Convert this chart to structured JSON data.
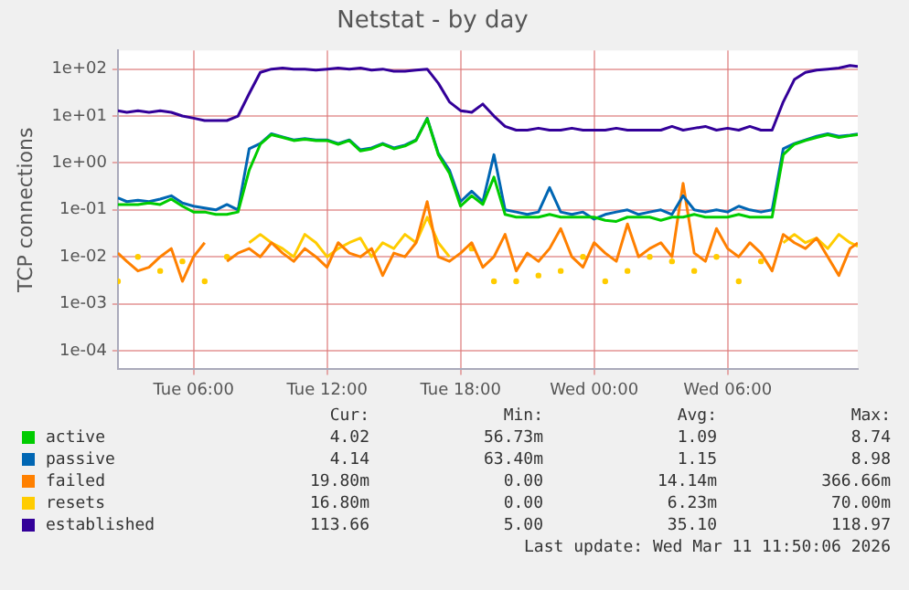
{
  "chart_data": {
    "type": "line",
    "title": "Netstat - by day",
    "ylabel": "TCP connections",
    "log": true,
    "grid": true,
    "legend": "bottom",
    "marker": "none",
    "line_style": "solid",
    "xlim": [
      "2026-03-10T02:36",
      "2026-03-11T11:51"
    ],
    "xticks": [
      {
        "value": "2026-03-10T06:00",
        "label": "Tue 06:00"
      },
      {
        "value": "2026-03-10T12:00",
        "label": "Tue 12:00"
      },
      {
        "value": "2026-03-10T18:00",
        "label": "Tue 18:00"
      },
      {
        "value": "2026-03-11T00:00",
        "label": "Wed 00:00"
      },
      {
        "value": "2026-03-11T06:00",
        "label": "Wed 06:00"
      }
    ],
    "ylim": [
      4e-05,
      250
    ],
    "yticks": [
      {
        "value": 0.0001,
        "label": "1e-04"
      },
      {
        "value": 0.001,
        "label": "1e-03"
      },
      {
        "value": 0.01,
        "label": "1e-02"
      },
      {
        "value": 0.1,
        "label": "1e-01"
      },
      {
        "value": 1,
        "label": "1e+00"
      },
      {
        "value": 10,
        "label": "1e+01"
      },
      {
        "value": 100,
        "label": "1e+02"
      }
    ],
    "x": [
      "2026-03-10T02:36",
      "2026-03-10T03:00",
      "2026-03-10T03:30",
      "2026-03-10T04:00",
      "2026-03-10T04:30",
      "2026-03-10T05:00",
      "2026-03-10T05:30",
      "2026-03-10T06:00",
      "2026-03-10T06:30",
      "2026-03-10T07:00",
      "2026-03-10T07:30",
      "2026-03-10T08:00",
      "2026-03-10T08:30",
      "2026-03-10T09:00",
      "2026-03-10T09:30",
      "2026-03-10T10:00",
      "2026-03-10T10:30",
      "2026-03-10T11:00",
      "2026-03-10T11:30",
      "2026-03-10T12:00",
      "2026-03-10T12:30",
      "2026-03-10T13:00",
      "2026-03-10T13:30",
      "2026-03-10T14:00",
      "2026-03-10T14:30",
      "2026-03-10T15:00",
      "2026-03-10T15:30",
      "2026-03-10T16:00",
      "2026-03-10T16:30",
      "2026-03-10T17:00",
      "2026-03-10T17:30",
      "2026-03-10T18:00",
      "2026-03-10T18:30",
      "2026-03-10T19:00",
      "2026-03-10T19:30",
      "2026-03-10T20:00",
      "2026-03-10T20:30",
      "2026-03-10T21:00",
      "2026-03-10T21:30",
      "2026-03-10T22:00",
      "2026-03-10T22:30",
      "2026-03-10T23:00",
      "2026-03-10T23:30",
      "2026-03-11T00:00",
      "2026-03-11T00:30",
      "2026-03-11T01:00",
      "2026-03-11T01:30",
      "2026-03-11T02:00",
      "2026-03-11T02:30",
      "2026-03-11T03:00",
      "2026-03-11T03:30",
      "2026-03-11T04:00",
      "2026-03-11T04:30",
      "2026-03-11T05:00",
      "2026-03-11T05:30",
      "2026-03-11T06:00",
      "2026-03-11T06:30",
      "2026-03-11T07:00",
      "2026-03-11T07:30",
      "2026-03-11T08:00",
      "2026-03-11T08:30",
      "2026-03-11T09:00",
      "2026-03-11T09:30",
      "2026-03-11T10:00",
      "2026-03-11T10:30",
      "2026-03-11T11:00",
      "2026-03-11T11:30",
      "2026-03-11T11:51"
    ],
    "series": [
      {
        "name": "active",
        "color": "#00cc00",
        "values": [
          0.13,
          0.13,
          0.13,
          0.14,
          0.13,
          0.17,
          0.12,
          0.09,
          0.09,
          0.08,
          0.08,
          0.09,
          0.7,
          2.5,
          4,
          3.5,
          3,
          3.2,
          3,
          3,
          2.5,
          3,
          1.8,
          2,
          2.5,
          2,
          2.3,
          3,
          8.74,
          1.5,
          0.6,
          0.12,
          0.2,
          0.13,
          0.5,
          0.08,
          0.07,
          0.07,
          0.07,
          0.08,
          0.07,
          0.07,
          0.07,
          0.07,
          0.06,
          0.05673,
          0.07,
          0.07,
          0.07,
          0.06,
          0.07,
          0.07,
          0.08,
          0.07,
          0.07,
          0.07,
          0.08,
          0.07,
          0.07,
          0.07,
          1.5,
          2.5,
          3,
          3.5,
          4,
          3.5,
          3.8,
          4.02
        ]
      },
      {
        "name": "passive",
        "color": "#0066b3",
        "values": [
          0.18,
          0.15,
          0.16,
          0.15,
          0.17,
          0.2,
          0.14,
          0.12,
          0.11,
          0.1,
          0.13,
          0.1,
          2,
          2.6,
          4.2,
          3.6,
          3.1,
          3.3,
          3.1,
          3.1,
          2.6,
          3.1,
          1.9,
          2.1,
          2.6,
          2.1,
          2.4,
          3.1,
          8.98,
          1.6,
          0.7,
          0.15,
          0.25,
          0.15,
          1.5,
          0.1,
          0.09,
          0.08,
          0.09,
          0.3,
          0.09,
          0.08,
          0.09,
          0.0634,
          0.08,
          0.09,
          0.1,
          0.08,
          0.09,
          0.1,
          0.08,
          0.2,
          0.1,
          0.09,
          0.1,
          0.09,
          0.12,
          0.1,
          0.09,
          0.1,
          2,
          2.6,
          3.1,
          3.7,
          4.2,
          3.7,
          3.9,
          4.14
        ]
      },
      {
        "name": "failed",
        "color": "#ff8000",
        "values": [
          0.012,
          0.008,
          0.005,
          0.006,
          0.01,
          0.015,
          0.003,
          0.01,
          0.02,
          null,
          0.008,
          0.012,
          0.015,
          0.01,
          0.02,
          0.012,
          0.008,
          0.015,
          0.01,
          0.006,
          0.02,
          0.012,
          0.01,
          0.015,
          0.004,
          0.012,
          0.01,
          0.02,
          0.15,
          0.01,
          0.008,
          0.012,
          0.02,
          0.006,
          0.01,
          0.03,
          0.005,
          0.012,
          0.008,
          0.015,
          0.04,
          0.01,
          0.006,
          0.02,
          0.012,
          0.008,
          0.05,
          0.01,
          0.015,
          0.02,
          0.01,
          0.36666,
          0.012,
          0.008,
          0.04,
          0.015,
          0.01,
          0.02,
          0.012,
          0.005,
          0.03,
          0.02,
          0.015,
          0.025,
          0.01,
          0.004,
          0.015,
          0.0198
        ]
      },
      {
        "name": "resets",
        "color": "#ffcc00",
        "values": [
          0.003,
          null,
          0.01,
          null,
          0.005,
          null,
          0.008,
          null,
          0.003,
          null,
          0.01,
          null,
          0.02,
          0.03,
          0.02,
          0.015,
          0.01,
          0.03,
          0.02,
          0.01,
          0.015,
          0.02,
          0.025,
          0.01,
          0.02,
          0.015,
          0.03,
          0.02,
          0.07,
          0.02,
          0.01,
          null,
          0.015,
          null,
          0.003,
          null,
          0.003,
          null,
          0.004,
          null,
          0.005,
          null,
          0.01,
          null,
          0.003,
          null,
          0.005,
          null,
          0.01,
          null,
          0.008,
          null,
          0.005,
          null,
          0.01,
          null,
          0.003,
          null,
          0.008,
          null,
          0.02,
          0.03,
          0.02,
          0.025,
          0.015,
          0.03,
          0.02,
          0.0168
        ]
      },
      {
        "name": "established",
        "color": "#330099",
        "values": [
          13,
          12,
          13,
          12,
          13,
          12,
          10,
          9,
          8,
          8,
          8,
          10,
          30,
          85,
          100,
          105,
          100,
          100,
          95,
          100,
          105,
          100,
          105,
          95,
          100,
          90,
          90,
          95,
          100,
          50,
          20,
          13,
          12,
          18,
          10,
          6,
          5,
          5,
          5.5,
          5,
          5,
          5.5,
          5,
          5,
          5,
          5.5,
          5,
          5,
          5,
          5,
          6,
          5,
          5.5,
          6,
          5,
          5.5,
          5,
          6,
          5,
          5,
          20,
          60,
          85,
          95,
          100,
          105,
          118.97,
          113.66
        ]
      }
    ],
    "annotations": [
      "Cur:",
      "Min:",
      "Avg:",
      "Max:",
      "4.02",
      "56.73m",
      "1.09",
      "8.74",
      "4.14",
      "63.40m",
      "1.15",
      "8.98",
      "19.80m",
      "0.00",
      "14.14m",
      "366.66m",
      "16.80m",
      "0.00",
      "6.23m",
      "70.00m",
      "113.66",
      "5.00",
      "35.10",
      "118.97",
      "Last update: Wed Mar 11 11:50:06 2026"
    ]
  }
}
